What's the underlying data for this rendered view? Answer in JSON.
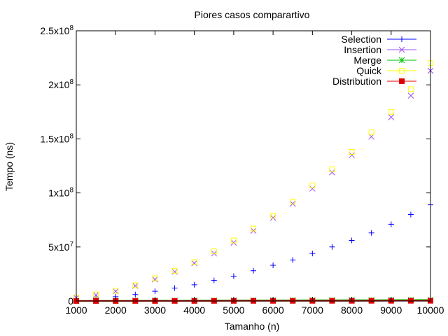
{
  "chart_data": {
    "type": "scatter",
    "title": "Piores casos comparartivo",
    "xlabel": "Tamanho (n)",
    "ylabel": "Tempo (ns)",
    "xlim": [
      1000,
      10000
    ],
    "ylim": [
      0,
      250000000
    ],
    "x_ticks": [
      1000,
      2000,
      3000,
      4000,
      5000,
      6000,
      7000,
      8000,
      9000,
      10000
    ],
    "y_ticks": [
      {
        "value": 0,
        "mant": "0",
        "exp": ""
      },
      {
        "value": 50000000,
        "mant": "5x10",
        "exp": "7"
      },
      {
        "value": 100000000,
        "mant": "1x10",
        "exp": "8"
      },
      {
        "value": 150000000,
        "mant": "1.5x10",
        "exp": "8"
      },
      {
        "value": 200000000,
        "mant": "2x10",
        "exp": "8"
      },
      {
        "value": 250000000,
        "mant": "2.5x10",
        "exp": "8"
      }
    ],
    "grid": false,
    "legend_position": "top-right",
    "x": [
      1000,
      1500,
      2000,
      2500,
      3000,
      3500,
      4000,
      4500,
      5000,
      5500,
      6000,
      6500,
      7000,
      7500,
      8000,
      8500,
      9000,
      9500,
      10000
    ],
    "series": [
      {
        "name": "Selection",
        "color": "#0000ff",
        "marker": "plus",
        "values": [
          1000000,
          2500000,
          4000000,
          6000000,
          9000000,
          12000000,
          15000000,
          19000000,
          23000000,
          28000000,
          33000000,
          38000000,
          44000000,
          50000000,
          56000000,
          63000000,
          71000000,
          80000000,
          89000000
        ]
      },
      {
        "name": "Insertion",
        "color": "#a050f0",
        "marker": "cross",
        "values": [
          3000000,
          5500000,
          9000000,
          14000000,
          20000000,
          27000000,
          35000000,
          44000000,
          54000000,
          65000000,
          77000000,
          90000000,
          104000000,
          119000000,
          135000000,
          152000000,
          170000000,
          190000000,
          213000000
        ]
      },
      {
        "name": "Merge",
        "color": "#00c000",
        "marker": "star",
        "values": [
          100000,
          150000,
          200000,
          250000,
          300000,
          350000,
          400000,
          450000,
          500000,
          550000,
          600000,
          650000,
          700000,
          750000,
          800000,
          850000,
          900000,
          950000,
          1000000
        ]
      },
      {
        "name": "Quick",
        "color": "#ffff00",
        "marker": "square",
        "values": [
          3200000,
          6000000,
          9500000,
          14500000,
          21000000,
          28000000,
          36000000,
          46000000,
          56000000,
          67000000,
          79000000,
          92000000,
          107000000,
          122000000,
          138000000,
          156000000,
          175000000,
          196000000,
          220000000
        ]
      },
      {
        "name": "Distribution",
        "color": "#e00000",
        "marker": "filled-square",
        "values": [
          50000,
          60000,
          70000,
          80000,
          90000,
          100000,
          110000,
          120000,
          130000,
          140000,
          150000,
          160000,
          170000,
          180000,
          190000,
          200000,
          210000,
          220000,
          230000
        ]
      }
    ]
  }
}
